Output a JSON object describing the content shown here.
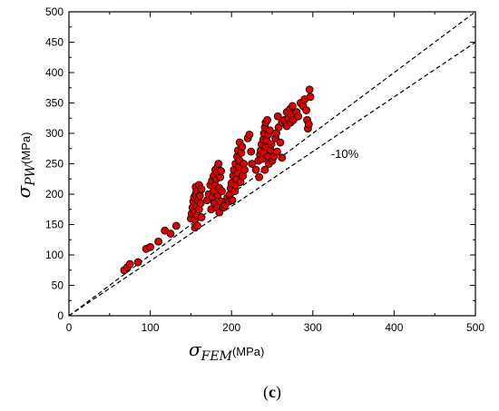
{
  "chart_data": {
    "type": "scatter",
    "xlim": [
      0,
      500
    ],
    "ylim": [
      0,
      500
    ],
    "x_ticks": [
      "0",
      "100",
      "200",
      "300",
      "400",
      "500"
    ],
    "y_ticks": [
      "0",
      "50",
      "100",
      "150",
      "200",
      "250",
      "300",
      "350",
      "400",
      "450",
      "500"
    ],
    "xlabel": {
      "symbol": "σ",
      "subscript": "FEM",
      "unit": "(MPa)"
    },
    "ylabel": {
      "symbol": "σ",
      "subscript": "PW",
      "unit": "(MPa)"
    },
    "grid": false,
    "marker_color": "#dd0000",
    "marker_edge_color": "#000000",
    "reference_lines": [
      {
        "slope": 1.0,
        "style": "dashed",
        "label": ""
      },
      {
        "slope": 0.9,
        "style": "dashed",
        "label": "-10%"
      }
    ],
    "panel_label": {
      "open": "(",
      "letter": "c",
      "close": ")"
    },
    "points": [
      [
        68,
        75
      ],
      [
        72,
        80
      ],
      [
        75,
        85
      ],
      [
        85,
        88
      ],
      [
        95,
        110
      ],
      [
        100,
        113
      ],
      [
        110,
        122
      ],
      [
        118,
        140
      ],
      [
        125,
        135
      ],
      [
        132,
        148
      ],
      [
        150,
        160
      ],
      [
        151,
        168
      ],
      [
        152,
        178
      ],
      [
        153,
        188
      ],
      [
        154,
        195
      ],
      [
        155,
        145
      ],
      [
        155,
        158
      ],
      [
        155,
        170
      ],
      [
        156,
        200
      ],
      [
        156,
        212
      ],
      [
        157,
        180
      ],
      [
        157,
        205
      ],
      [
        158,
        148
      ],
      [
        158,
        165
      ],
      [
        159,
        190
      ],
      [
        160,
        215
      ],
      [
        160,
        175
      ],
      [
        161,
        197
      ],
      [
        162,
        185
      ],
      [
        163,
        208
      ],
      [
        163,
        162
      ],
      [
        170,
        190
      ],
      [
        172,
        200
      ],
      [
        174,
        215
      ],
      [
        175,
        175
      ],
      [
        176,
        222
      ],
      [
        177,
        195
      ],
      [
        178,
        230
      ],
      [
        178,
        205
      ],
      [
        179,
        185
      ],
      [
        180,
        240
      ],
      [
        180,
        215
      ],
      [
        181,
        225
      ],
      [
        182,
        235
      ],
      [
        182,
        178
      ],
      [
        183,
        245
      ],
      [
        183,
        198
      ],
      [
        184,
        250
      ],
      [
        185,
        210
      ],
      [
        185,
        170
      ],
      [
        186,
        228
      ],
      [
        187,
        238
      ],
      [
        187,
        188
      ],
      [
        188,
        205
      ],
      [
        190,
        178
      ],
      [
        192,
        182
      ],
      [
        195,
        195
      ],
      [
        197,
        188
      ],
      [
        198,
        200
      ],
      [
        199,
        210
      ],
      [
        200,
        218
      ],
      [
        201,
        190
      ],
      [
        202,
        230
      ],
      [
        203,
        240
      ],
      [
        204,
        205
      ],
      [
        205,
        250
      ],
      [
        205,
        215
      ],
      [
        206,
        225
      ],
      [
        207,
        262
      ],
      [
        208,
        235
      ],
      [
        208,
        272
      ],
      [
        209,
        245
      ],
      [
        210,
        285
      ],
      [
        210,
        255
      ],
      [
        211,
        220
      ],
      [
        212,
        268
      ],
      [
        213,
        278
      ],
      [
        214,
        230
      ],
      [
        215,
        250
      ],
      [
        216,
        240
      ],
      [
        220,
        292
      ],
      [
        222,
        298
      ],
      [
        224,
        270
      ],
      [
        225,
        250
      ],
      [
        230,
        240
      ],
      [
        233,
        255
      ],
      [
        234,
        228
      ],
      [
        235,
        265
      ],
      [
        236,
        272
      ],
      [
        237,
        282
      ],
      [
        238,
        258
      ],
      [
        239,
        290
      ],
      [
        240,
        300
      ],
      [
        240,
        268
      ],
      [
        241,
        310
      ],
      [
        241,
        240
      ],
      [
        242,
        318
      ],
      [
        242,
        278
      ],
      [
        243,
        288
      ],
      [
        244,
        322
      ],
      [
        245,
        262
      ],
      [
        245,
        298
      ],
      [
        246,
        250
      ],
      [
        247,
        305
      ],
      [
        248,
        272
      ],
      [
        249,
        282
      ],
      [
        250,
        255
      ],
      [
        252,
        262
      ],
      [
        254,
        292
      ],
      [
        255,
        300
      ],
      [
        256,
        270
      ],
      [
        257,
        328
      ],
      [
        258,
        310
      ],
      [
        260,
        285
      ],
      [
        262,
        260
      ],
      [
        262,
        318
      ],
      [
        265,
        322
      ],
      [
        268,
        335
      ],
      [
        268,
        312
      ],
      [
        270,
        325
      ],
      [
        272,
        340
      ],
      [
        273,
        318
      ],
      [
        274,
        330
      ],
      [
        275,
        345
      ],
      [
        276,
        322
      ],
      [
        280,
        335
      ],
      [
        282,
        328
      ],
      [
        285,
        350
      ],
      [
        288,
        345
      ],
      [
        290,
        356
      ],
      [
        292,
        338
      ],
      [
        293,
        322
      ],
      [
        294,
        308
      ],
      [
        295,
        315
      ],
      [
        296,
        372
      ],
      [
        297,
        360
      ]
    ]
  }
}
